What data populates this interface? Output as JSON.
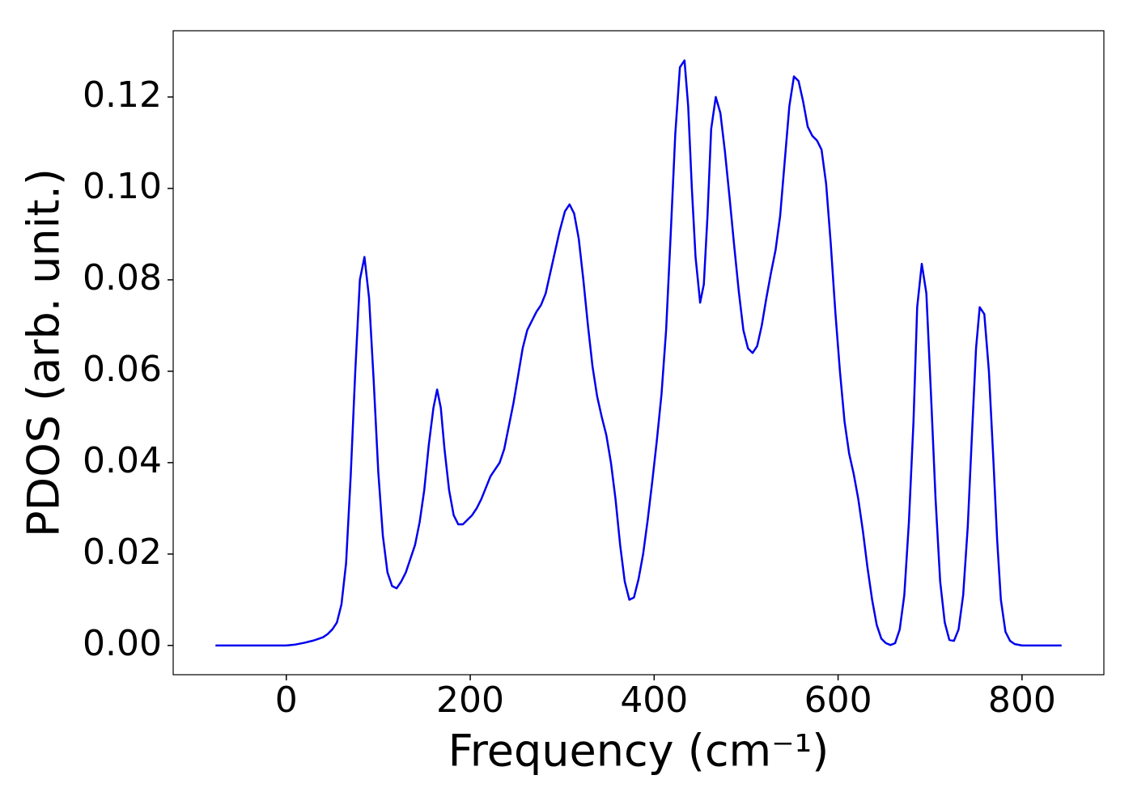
{
  "chart_data": {
    "type": "line",
    "x_label": "Frequency (cm⁻¹)",
    "y_label": "PDOS (arb. unit.)",
    "xlim": [
      -123,
      889
    ],
    "ylim": [
      -0.0064,
      0.1345
    ],
    "xticks": [
      0,
      200,
      400,
      600,
      800
    ],
    "yticks": [
      {
        "value": 0,
        "label": "0.00"
      },
      {
        "value": 0.02,
        "label": "0.02"
      },
      {
        "value": 0.04,
        "label": "0.04"
      },
      {
        "value": 0.06,
        "label": "0.06"
      },
      {
        "value": 0.08,
        "label": "0.08"
      },
      {
        "value": 0.1,
        "label": "0.10"
      },
      {
        "value": 0.12,
        "label": "0.12"
      }
    ],
    "grid": false,
    "x": [
      -77,
      0,
      10,
      20,
      30,
      40,
      45,
      50,
      55,
      60,
      65,
      70,
      75,
      80,
      85,
      90,
      95,
      100,
      105,
      110,
      115,
      120,
      125,
      130,
      135,
      140,
      145,
      150,
      155,
      160,
      164,
      168,
      172,
      177,
      182,
      187,
      192,
      197,
      202,
      207,
      212,
      217,
      222,
      227,
      232,
      237,
      242,
      247,
      252,
      257,
      262,
      267,
      272,
      277,
      282,
      287,
      292,
      297,
      303,
      308,
      313,
      318,
      323,
      328,
      333,
      338,
      343,
      348,
      353,
      358,
      363,
      368,
      373,
      378,
      383,
      388,
      393,
      398,
      403,
      408,
      413,
      418,
      423,
      428,
      433,
      437,
      441,
      445,
      450,
      454,
      458,
      462,
      467,
      472,
      477,
      482,
      487,
      492,
      497,
      502,
      507,
      512,
      517,
      522,
      527,
      532,
      537,
      542,
      547,
      552,
      557,
      562,
      567,
      572,
      577,
      582,
      587,
      592,
      597,
      602,
      607,
      612,
      617,
      622,
      627,
      632,
      637,
      642,
      647,
      652,
      657,
      662,
      667,
      672,
      677,
      682,
      686,
      691,
      696,
      701,
      706,
      711,
      716,
      721,
      726,
      731,
      736,
      741,
      746,
      750,
      754,
      759,
      764,
      769,
      773,
      777,
      782,
      787,
      792,
      800,
      843
    ],
    "series": [
      {
        "name": "PDOS",
        "color": "#0000ee",
        "values": [
          0,
          0,
          0.0002,
          0.0006,
          0.0011,
          0.0018,
          0.0025,
          0.0035,
          0.005,
          0.009,
          0.018,
          0.037,
          0.06,
          0.08,
          0.085,
          0.076,
          0.058,
          0.038,
          0.024,
          0.016,
          0.013,
          0.0125,
          0.014,
          0.016,
          0.019,
          0.022,
          0.027,
          0.034,
          0.044,
          0.052,
          0.056,
          0.052,
          0.043,
          0.034,
          0.0285,
          0.0265,
          0.0265,
          0.0275,
          0.0285,
          0.03,
          0.032,
          0.0345,
          0.037,
          0.0385,
          0.04,
          0.043,
          0.048,
          0.053,
          0.059,
          0.065,
          0.069,
          0.071,
          0.073,
          0.0745,
          0.077,
          0.0815,
          0.086,
          0.0905,
          0.095,
          0.0965,
          0.0945,
          0.089,
          0.08,
          0.07,
          0.061,
          0.0545,
          0.05,
          0.046,
          0.04,
          0.032,
          0.022,
          0.014,
          0.01,
          0.0105,
          0.0145,
          0.02,
          0.0275,
          0.036,
          0.045,
          0.055,
          0.069,
          0.09,
          0.112,
          0.1265,
          0.128,
          0.118,
          0.1,
          0.085,
          0.075,
          0.079,
          0.094,
          0.113,
          0.12,
          0.1165,
          0.108,
          0.098,
          0.0875,
          0.0775,
          0.069,
          0.065,
          0.064,
          0.0655,
          0.07,
          0.076,
          0.0815,
          0.0865,
          0.094,
          0.106,
          0.118,
          0.1245,
          0.1235,
          0.119,
          0.1135,
          0.1115,
          0.1105,
          0.1085,
          0.101,
          0.088,
          0.073,
          0.06,
          0.049,
          0.042,
          0.0375,
          0.032,
          0.025,
          0.017,
          0.01,
          0.0045,
          0.0015,
          0.0005,
          0.0001,
          0.0005,
          0.0035,
          0.011,
          0.027,
          0.049,
          0.074,
          0.0835,
          0.077,
          0.055,
          0.032,
          0.014,
          0.005,
          0.0012,
          0.001,
          0.0035,
          0.011,
          0.026,
          0.048,
          0.065,
          0.074,
          0.0725,
          0.06,
          0.04,
          0.023,
          0.01,
          0.003,
          0.001,
          0.0003,
          0,
          0
        ]
      }
    ]
  }
}
